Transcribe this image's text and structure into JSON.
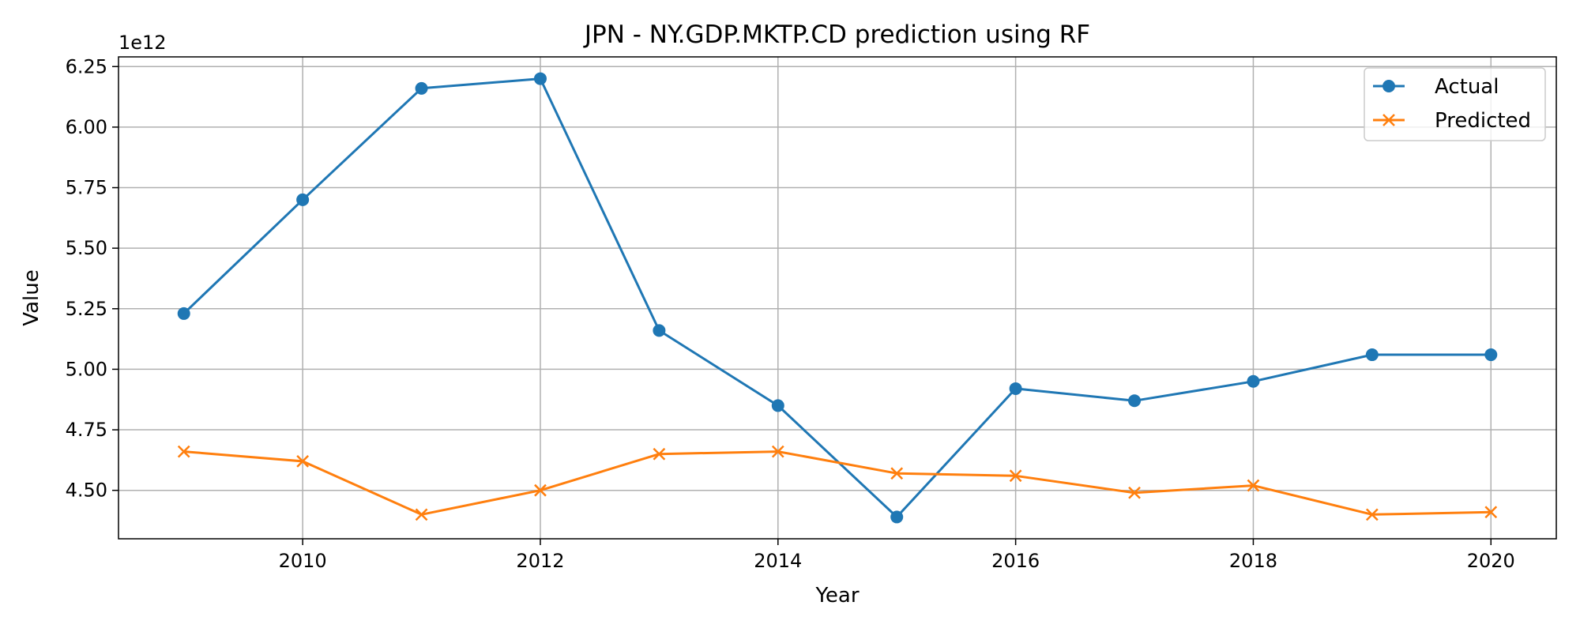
{
  "chart_data": {
    "type": "line",
    "title": "JPN - NY.GDP.MKTP.CD prediction using RF",
    "xlabel": "Year",
    "ylabel": "Value",
    "y_offset_label": "1e12",
    "x": [
      2009,
      2010,
      2011,
      2012,
      2013,
      2014,
      2015,
      2016,
      2017,
      2018,
      2019,
      2020
    ],
    "xlim": [
      2008.45,
      2020.55
    ],
    "ylim": [
      4.3,
      6.29
    ],
    "x_ticks": [
      2010,
      2012,
      2014,
      2016,
      2018,
      2020
    ],
    "x_tick_labels": [
      "2010",
      "2012",
      "2014",
      "2016",
      "2018",
      "2020"
    ],
    "y_ticks": [
      4.5,
      4.75,
      5.0,
      5.25,
      5.5,
      5.75,
      6.0,
      6.25
    ],
    "y_tick_labels": [
      "4.50",
      "4.75",
      "5.00",
      "5.25",
      "5.50",
      "5.75",
      "6.00",
      "6.25"
    ],
    "grid": true,
    "legend_position": "top-right",
    "series": [
      {
        "name": "Actual",
        "color": "#1f77b4",
        "marker": "circle",
        "values": [
          5.23,
          5.7,
          6.16,
          6.2,
          5.16,
          4.85,
          4.39,
          4.92,
          4.87,
          4.95,
          5.06,
          5.06
        ]
      },
      {
        "name": "Predicted",
        "color": "#ff7f0e",
        "marker": "x",
        "values": [
          4.66,
          4.62,
          4.4,
          4.5,
          4.65,
          4.66,
          4.57,
          4.56,
          4.49,
          4.52,
          4.4,
          4.41
        ]
      }
    ]
  }
}
